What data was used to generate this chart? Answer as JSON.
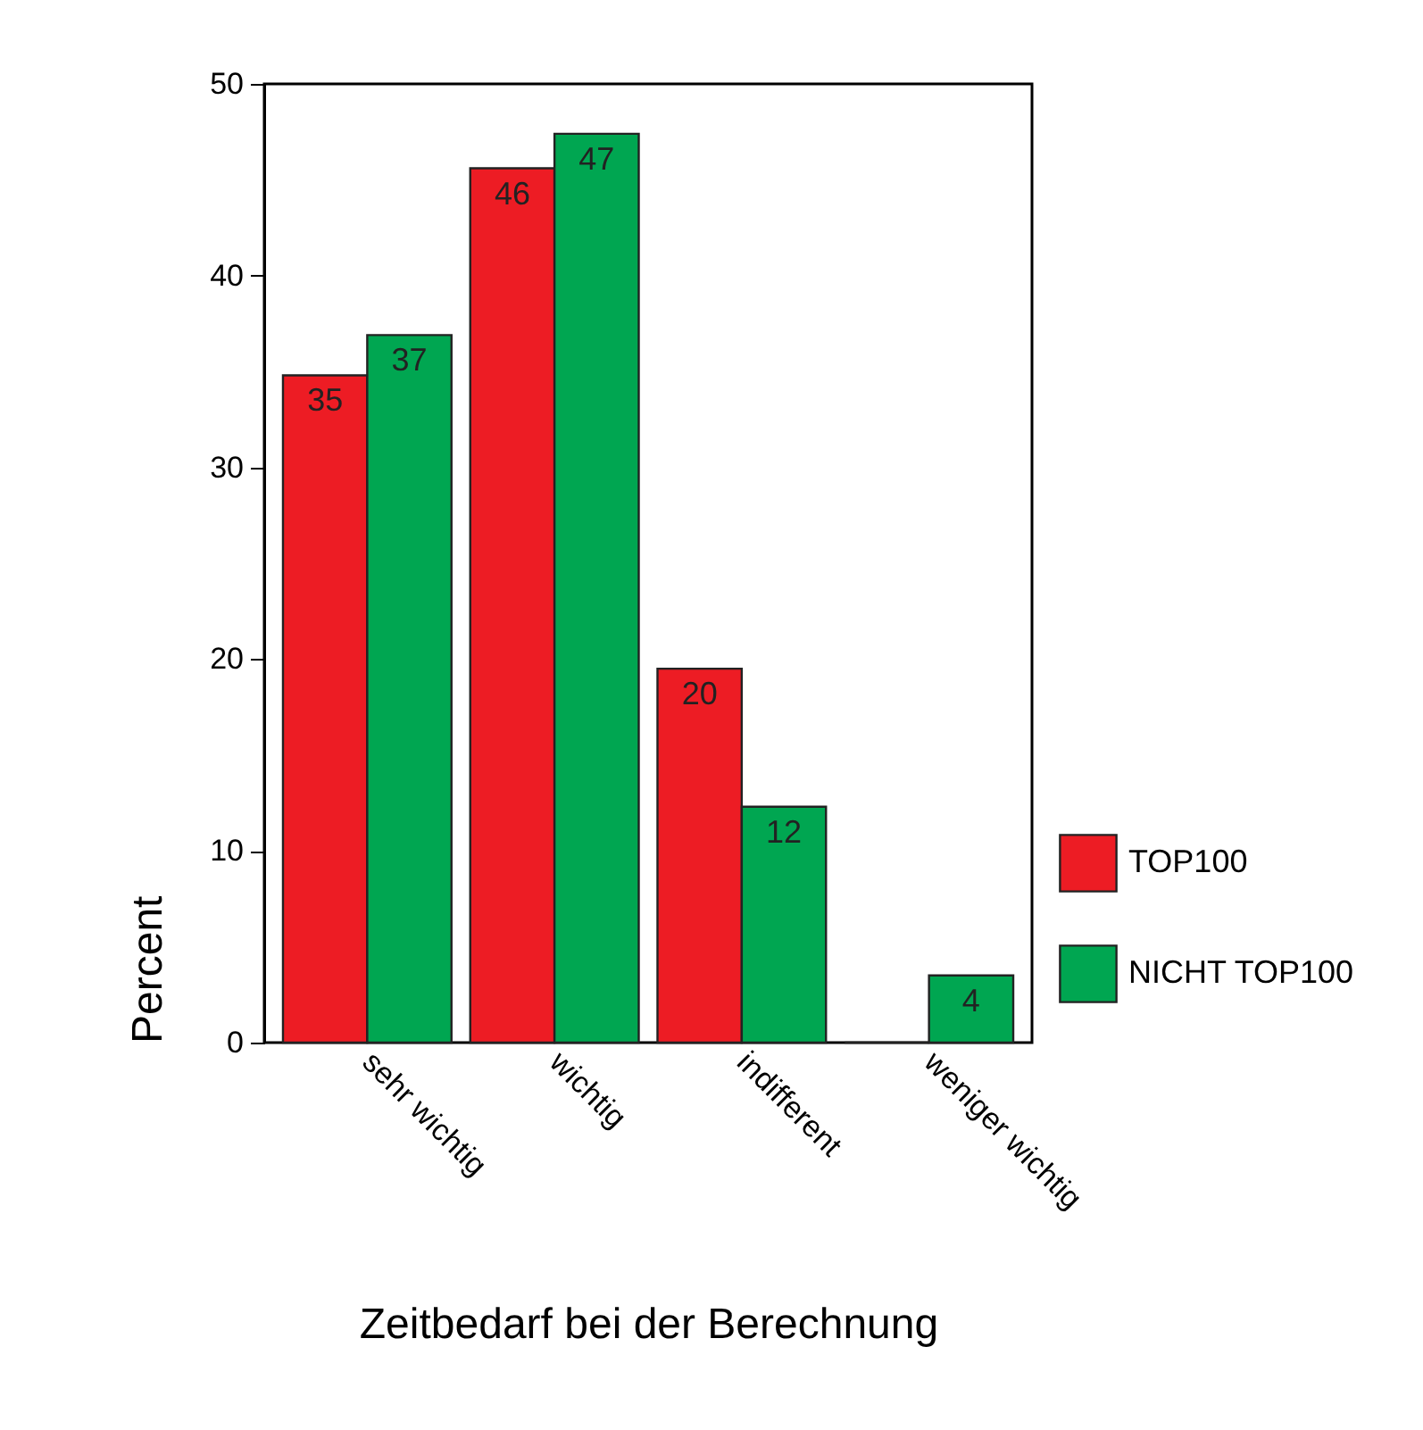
{
  "chart_data": {
    "type": "bar",
    "xlabel": "Zeitbedarf bei der Berechnung",
    "ylabel": "Percent",
    "categories": [
      "sehr wichtig",
      "wichtig",
      "indifferent",
      "weniger wichtig"
    ],
    "series": [
      {
        "name": "TOP100",
        "color": "#ed1c24",
        "values": [
          34.8,
          45.6,
          19.5,
          0
        ],
        "value_labels": [
          "35",
          "46",
          "20",
          null
        ]
      },
      {
        "name": "NICHT TOP100",
        "color": "#00a651",
        "values": [
          36.9,
          47.4,
          12.3,
          3.5
        ],
        "value_labels": [
          "37",
          "47",
          "12",
          "4"
        ]
      }
    ],
    "ylim": [
      0,
      50
    ],
    "yticks": [
      0,
      10,
      20,
      30,
      40,
      50
    ],
    "grid": false,
    "legend": "right"
  }
}
